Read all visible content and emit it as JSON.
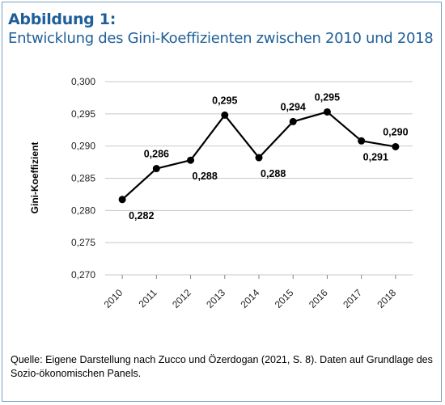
{
  "figure": {
    "label": "Abbildung 1:",
    "title": "Entwicklung des Gini-Koeffizienten zwischen 2010 und 2018"
  },
  "source": {
    "line1": "Quelle: Eigene Darstellung nach Zucco und Özerdogan (2021, S. 8). Daten auf Grundlage des",
    "line2": "Sozio-ökonomischen Panels."
  },
  "colors": {
    "title": "#1f5f99",
    "frame": "#7aa0c0",
    "line": "#000000",
    "grid": "#c8c8c8"
  },
  "chart_data": {
    "type": "line",
    "title": "",
    "xlabel": "",
    "ylabel": "Gini-Koeffizient",
    "x": [
      "2010",
      "2011",
      "2012",
      "2013",
      "2014",
      "2015",
      "2016",
      "2017",
      "2018"
    ],
    "series": [
      {
        "values": [
          0.2817,
          0.2865,
          0.2878,
          0.2948,
          0.2882,
          0.2938,
          0.2953,
          0.2908,
          0.2899
        ]
      }
    ],
    "data_labels": [
      "0,282",
      "0,286",
      "0,288",
      "0,295",
      "0,288",
      "0,294",
      "0,295",
      "0,291",
      "0,290"
    ],
    "label_positions": [
      "below",
      "above",
      "below",
      "above",
      "below",
      "above",
      "above",
      "below",
      "above"
    ],
    "yticks": [
      "0,270",
      "0,275",
      "0,280",
      "0,285",
      "0,290",
      "0,295",
      "0,300"
    ],
    "ylim": [
      0.27,
      0.3
    ],
    "grid": true,
    "legend": "none"
  }
}
